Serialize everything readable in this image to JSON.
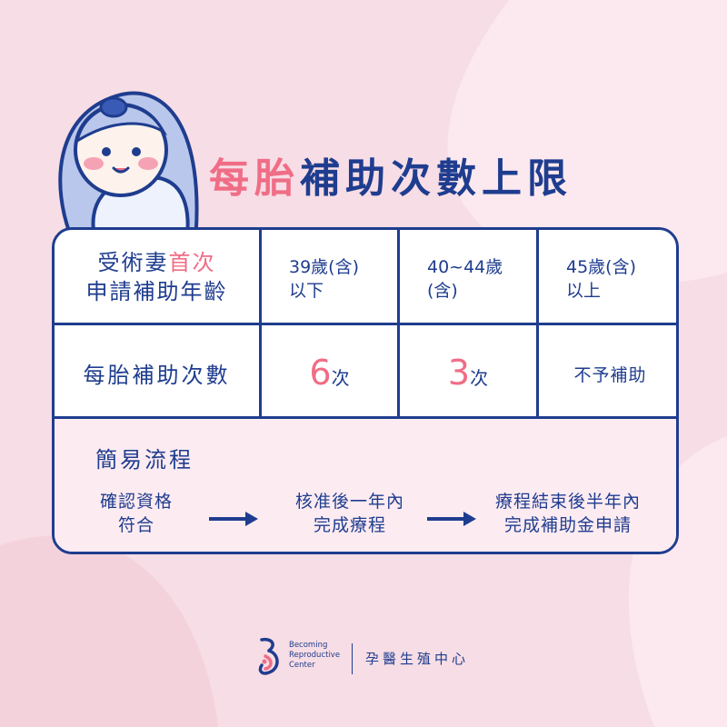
{
  "title": {
    "pink": "每胎",
    "blue": "補助次數上限"
  },
  "table": {
    "header": {
      "label_line1_a": "受術妻",
      "label_line1_b": "首次",
      "label_line2": "申請補助年齡",
      "ages": [
        {
          "line1": "39歲(含)",
          "line2": "以下"
        },
        {
          "line1": "40~44歲",
          "line2": "(含)"
        },
        {
          "line1": "45歲(含)",
          "line2": "以上"
        }
      ]
    },
    "counts": {
      "label": "每胎補助次數",
      "col1_num": "6",
      "col1_unit": "次",
      "col2_num": "3",
      "col2_unit": "次",
      "col3_text": "不予補助"
    },
    "flow": {
      "title": "簡易流程",
      "steps": [
        {
          "line1": "確認資格",
          "line2": "符合"
        },
        {
          "line1": "核准後一年內",
          "line2": "完成療程"
        },
        {
          "line1": "療程結束後半年內",
          "line2": "完成補助金申請"
        }
      ]
    }
  },
  "footer": {
    "en_line1": "Becoming",
    "en_line2": "Reproductive",
    "en_line3": "Center",
    "zh": "孕醫生殖中心"
  },
  "colors": {
    "navy": "#1f3d8f",
    "pink": "#f06d86",
    "background": "#f7dde5",
    "flow_bg": "#fcebf1"
  }
}
